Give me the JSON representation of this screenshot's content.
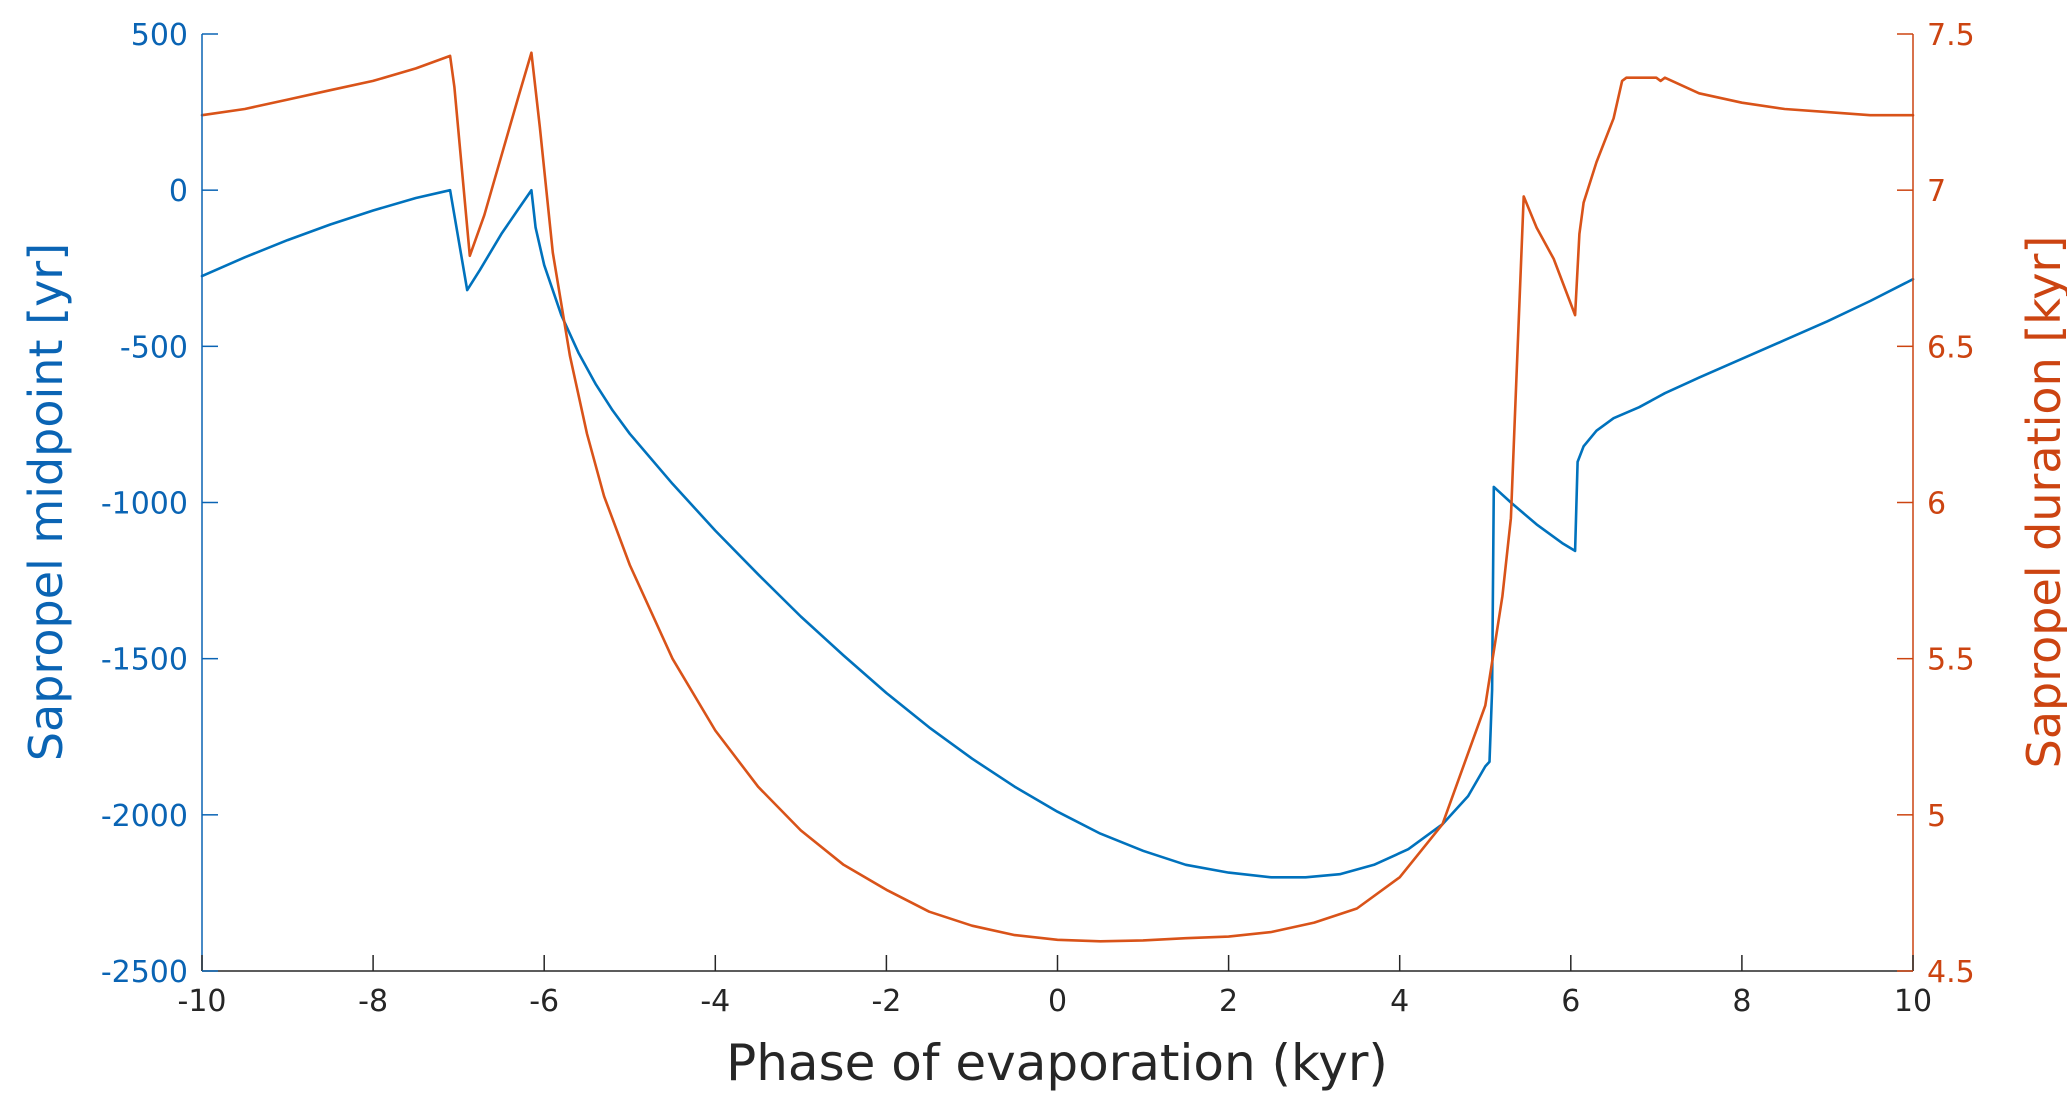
{
  "chart_data": {
    "type": "line",
    "xlabel": "Phase of evaporation (kyr)",
    "ylabel_left": "Sapropel midpoint [yr]",
    "ylabel_right": "Sapropel duration [kyr]",
    "xlim": [
      -10,
      10
    ],
    "ylim_left": [
      -2500,
      500
    ],
    "ylim_right": [
      4.5,
      7.5
    ],
    "xticks": [
      "-10",
      "-8",
      "-6",
      "-4",
      "-2",
      "0",
      "2",
      "4",
      "6",
      "8",
      "10"
    ],
    "yticks_left": [
      "500",
      "0",
      "-500",
      "-1000",
      "-1500",
      "-2000",
      "-2500"
    ],
    "yticks_right": [
      "7.5",
      "7",
      "6.5",
      "6",
      "5.5",
      "5",
      "4.5"
    ],
    "grid": false,
    "colors": {
      "left_axis": "#0a64b4",
      "right_axis": "#cc4411",
      "x_axis": "#262626"
    },
    "series": [
      {
        "axis": "left",
        "color": "#0072bd",
        "x": [
          -10,
          -9.5,
          -9,
          -8.5,
          -8,
          -7.5,
          -7.1,
          -6.9,
          -6.75,
          -6.5,
          -6.3,
          -6.15,
          -6.1,
          -6.0,
          -5.8,
          -5.6,
          -5.4,
          -5.2,
          -5,
          -4.5,
          -4,
          -3.5,
          -3,
          -2.5,
          -2,
          -1.5,
          -1,
          -0.5,
          0,
          0.5,
          1,
          1.5,
          2,
          2.5,
          2.9,
          3.3,
          3.7,
          4.1,
          4.5,
          4.8,
          5.0,
          5.05,
          5.08,
          5.1,
          5.3,
          5.6,
          5.9,
          6.05,
          6.08,
          6.15,
          6.3,
          6.5,
          6.8,
          7.0,
          7.1,
          7.5,
          8,
          8.5,
          9,
          9.5,
          10
        ],
        "y": [
          -275,
          -215,
          -160,
          -110,
          -65,
          -25,
          0,
          -320,
          -255,
          -140,
          -60,
          0,
          -120,
          -240,
          -400,
          -520,
          -620,
          -705,
          -780,
          -940,
          -1090,
          -1230,
          -1365,
          -1490,
          -1610,
          -1720,
          -1820,
          -1910,
          -1990,
          -2060,
          -2115,
          -2160,
          -2185,
          -2200,
          -2200,
          -2190,
          -2160,
          -2110,
          -2030,
          -1940,
          -1845,
          -1830,
          -1600,
          -950,
          -1000,
          -1070,
          -1130,
          -1155,
          -870,
          -820,
          -770,
          -730,
          -695,
          -665,
          -650,
          -600,
          -540,
          -480,
          -420,
          -355,
          -285
        ]
      },
      {
        "axis": "right",
        "color": "#d95319",
        "x": [
          -10,
          -9.5,
          -9,
          -8.5,
          -8,
          -7.5,
          -7.1,
          -7.05,
          -6.87,
          -6.7,
          -6.5,
          -6.3,
          -6.15,
          -6.05,
          -5.9,
          -5.7,
          -5.5,
          -5.3,
          -5,
          -4.5,
          -4,
          -3.5,
          -3,
          -2.5,
          -2,
          -1.5,
          -1,
          -0.5,
          0,
          0.5,
          1,
          1.5,
          2,
          2.5,
          3,
          3.5,
          4,
          4.5,
          5,
          5.2,
          5.3,
          5.35,
          5.45,
          5.6,
          5.8,
          6.05,
          6.1,
          6.15,
          6.3,
          6.5,
          6.6,
          6.65,
          6.7,
          7.0,
          7.05,
          7.1,
          7.5,
          8,
          8.5,
          9,
          9.5,
          10
        ],
        "y": [
          7.24,
          7.26,
          7.29,
          7.32,
          7.35,
          7.39,
          7.43,
          7.33,
          6.79,
          6.92,
          7.11,
          7.3,
          7.44,
          7.2,
          6.8,
          6.47,
          6.22,
          6.02,
          5.8,
          5.5,
          5.27,
          5.09,
          4.95,
          4.84,
          4.76,
          4.69,
          4.645,
          4.615,
          4.6,
          4.595,
          4.598,
          4.605,
          4.61,
          4.625,
          4.655,
          4.7,
          4.8,
          4.97,
          5.35,
          5.7,
          5.95,
          6.3,
          6.98,
          6.88,
          6.78,
          6.6,
          6.86,
          6.96,
          7.09,
          7.23,
          7.35,
          7.36,
          7.36,
          7.36,
          7.35,
          7.36,
          7.31,
          7.28,
          7.26,
          7.25,
          7.24,
          7.24
        ]
      }
    ]
  }
}
